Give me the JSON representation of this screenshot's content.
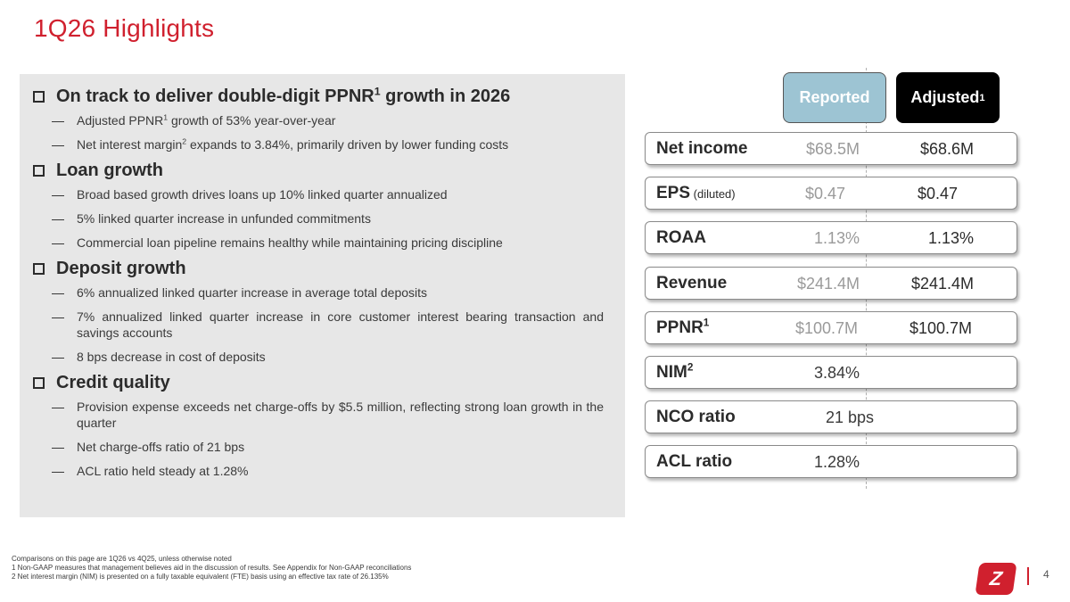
{
  "title": "1Q26 Highlights",
  "sections": [
    {
      "heading": "On track to deliver double-digit PPNR",
      "heading_sup": "1",
      "heading_tail": " growth in 2026",
      "bullets": [
        {
          "pre": "Adjusted PPNR",
          "sup": "1",
          "post": " growth of 53% year-over-year"
        },
        {
          "pre": "Net interest margin",
          "sup": "2",
          "post": " expands to 3.84%, primarily driven by lower funding costs"
        }
      ]
    },
    {
      "heading": "Loan growth",
      "bullets": [
        {
          "pre": "Broad based growth drives loans up 10% linked quarter annualized"
        },
        {
          "pre": "5% linked quarter increase in unfunded commitments"
        },
        {
          "pre": "Commercial loan pipeline remains healthy while maintaining pricing discipline"
        }
      ]
    },
    {
      "heading": "Deposit growth",
      "bullets": [
        {
          "pre": "6% annualized linked quarter increase in average total deposits"
        },
        {
          "pre": "7% annualized linked quarter increase in core customer interest bearing transaction and savings accounts"
        },
        {
          "pre": "8 bps decrease in cost of deposits"
        }
      ]
    },
    {
      "heading": "Credit quality",
      "bullets": [
        {
          "pre": "Provision expense exceeds net charge-offs by $5.5 million, reflecting strong loan growth in the quarter"
        },
        {
          "pre": "Net charge-offs ratio of 21 bps"
        },
        {
          "pre": "ACL ratio held steady at 1.28%"
        }
      ]
    }
  ],
  "headers": {
    "reported": "Reported",
    "adjusted": "Adjusted",
    "adjusted_sup": "1"
  },
  "metrics": [
    {
      "label": "Net income",
      "reported": "$68.5M",
      "adjusted": "$68.6M"
    },
    {
      "label": "EPS",
      "label_sub": " (diluted)",
      "reported": "$0.47",
      "adjusted": "$0.47"
    },
    {
      "label": "ROAA",
      "reported": "1.13%",
      "adjusted": "1.13%"
    },
    {
      "label": "Revenue",
      "reported": "$241.4M",
      "adjusted": "$241.4M"
    },
    {
      "label": "PPNR",
      "label_sup": "1",
      "reported": "$100.7M",
      "adjusted": "$100.7M"
    },
    {
      "label": "NIM",
      "label_sup": "2",
      "reported": "3.84%",
      "adjusted": ""
    },
    {
      "label": "NCO ratio",
      "reported": "21 bps",
      "adjusted": ""
    },
    {
      "label": "ACL ratio",
      "reported": "1.28%",
      "adjusted": ""
    }
  ],
  "footnotes": {
    "intro": "Comparisons on this page are 1Q26 vs 4Q25, unless otherwise noted",
    "note1": "1   Non-GAAP measures that management believes aid in the discussion of results. See Appendix for Non-GAAP reconciliations",
    "note2": "2   Net interest margin (NIM) is presented on a fully taxable equivalent (FTE) basis using an effective tax rate of 26.135%"
  },
  "page_number": "4",
  "colors": {
    "brand_red": "#d0202e",
    "reported_fill": "#9dc4d3",
    "adjusted_fill": "#000000",
    "panel_gray": "#e7e7e7"
  }
}
